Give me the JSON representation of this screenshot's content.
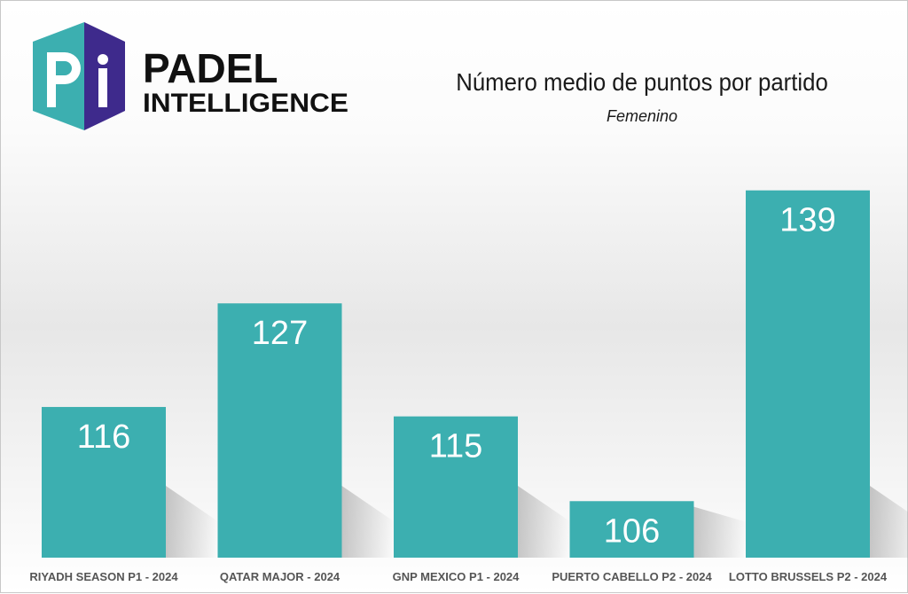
{
  "brand": {
    "logo_line1": "PADEL",
    "logo_line2": "INTELLIGENCE",
    "colors": {
      "teal": "#3CAFB0",
      "purple": "#3E2A8C",
      "dark": "#111111"
    }
  },
  "chart_data": {
    "type": "bar",
    "title": "Número medio de puntos por partido",
    "subtitle": "Femenino",
    "categories": [
      "RIYADH SEASON P1 - 2024",
      "QATAR MAJOR - 2024",
      "GNP MEXICO P1 - 2024",
      "PUERTO CABELLO P2 - 2024",
      "LOTTO BRUSSELS P2 - 2024"
    ],
    "values": [
      116,
      127,
      115,
      106,
      139
    ],
    "ylim": [
      100,
      145
    ],
    "grid": false,
    "bar_color": "#3CAFB0"
  }
}
